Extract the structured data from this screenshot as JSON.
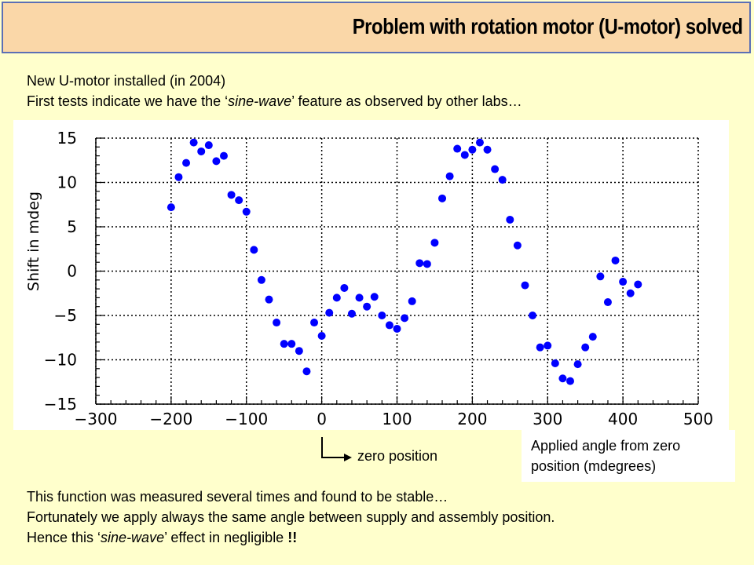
{
  "slide": {
    "title": "Problem with rotation motor (U-motor) solved",
    "intro_line1": "New U-motor installed (in 2004)",
    "intro_line2_a": "First tests indicate we have the ‘",
    "intro_line2_em": "sine-wave",
    "intro_line2_b": "’ feature as observed by other labs…",
    "annotation_line1": "Applied angle from zero",
    "annotation_line2": "position (mdegrees)",
    "zero_label": "zero position",
    "outro_line1": "This function was measured several times and found to be stable…",
    "outro_line2": "Fortunately we apply always the same angle between supply and assembly position.",
    "outro_line3_a": "Hence this ‘",
    "outro_line3_em": "sine-wave",
    "outro_line3_b": "’ effect in negligible ",
    "outro_line3_c": "!!"
  },
  "colors": {
    "background": "#ffffcc",
    "title_bg": "#fad7a8",
    "title_border": "#5b6fb5",
    "marker": "#0000ff"
  },
  "chart_data": {
    "type": "scatter",
    "ylabel": "Shift in mdeg",
    "xlabel": "",
    "xlim": [
      -300,
      500
    ],
    "ylim": [
      -15,
      15
    ],
    "xticks": [
      -300,
      -200,
      -100,
      0,
      100,
      200,
      300,
      400,
      500
    ],
    "yticks": [
      -15,
      -10,
      -5,
      0,
      5,
      10,
      15
    ],
    "grid": true,
    "series": [
      {
        "x": [
          -200,
          -190,
          -180,
          -170,
          -160,
          -150,
          -140,
          -130,
          -120,
          -110,
          -100,
          -90,
          -80,
          -70,
          -60,
          -50,
          -40,
          -30,
          -20,
          -10,
          0,
          10,
          20,
          30,
          40,
          50,
          60,
          70,
          80,
          90,
          100,
          110,
          120,
          130,
          140,
          150,
          160,
          170,
          180,
          190,
          200,
          210,
          220,
          230,
          240,
          250,
          260,
          270,
          280,
          290,
          300,
          310,
          320,
          330,
          340,
          350,
          360,
          370,
          380,
          390,
          400,
          410,
          420
        ],
        "y": [
          7.2,
          10.6,
          12.2,
          14.5,
          13.5,
          14.2,
          12.4,
          13.0,
          8.6,
          8.0,
          6.7,
          2.4,
          -1.0,
          -3.2,
          -5.8,
          -8.2,
          -8.2,
          -9.0,
          -11.3,
          -5.8,
          -7.3,
          -4.7,
          -3.0,
          -1.9,
          -4.8,
          -3.0,
          -4.0,
          -2.9,
          -5.0,
          -6.1,
          -6.5,
          -5.3,
          -3.4,
          0.9,
          0.8,
          3.2,
          8.2,
          10.7,
          13.8,
          13.1,
          13.7,
          14.5,
          13.7,
          11.5,
          10.3,
          5.8,
          2.9,
          -1.6,
          -5.0,
          -8.6,
          -8.4,
          -10.4,
          -12.1,
          -12.4,
          -10.5,
          -8.6,
          -7.4,
          -0.6,
          -3.5,
          1.2,
          -1.2,
          -2.5,
          -1.5
        ]
      }
    ]
  }
}
